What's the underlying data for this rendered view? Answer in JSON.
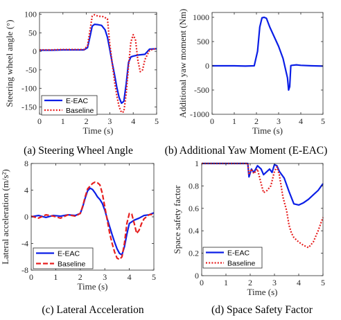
{
  "chart_data": [
    {
      "id": "a",
      "type": "line",
      "caption": "(a) Steering Wheel Angle",
      "xlabel": "Time (s)",
      "ylabel": "Steering wheel angle (°)",
      "xlim": [
        0,
        5
      ],
      "ylim": [
        -170,
        105
      ],
      "xticks": [
        0,
        1,
        2,
        3,
        4,
        5
      ],
      "yticks": [
        -150,
        -100,
        -50,
        0,
        50,
        100
      ],
      "grid": false,
      "legend": "bottom-left",
      "series": [
        {
          "name": "E-EAC",
          "color": "#0a1ee6",
          "style": "solid",
          "x": [
            0,
            0.5,
            1.0,
            1.5,
            1.9,
            2.05,
            2.15,
            2.25,
            2.35,
            2.5,
            2.65,
            2.8,
            2.9,
            3.0,
            3.1,
            3.2,
            3.3,
            3.4,
            3.5,
            3.6,
            3.7,
            3.8,
            3.9,
            4.0,
            4.2,
            4.5,
            4.7,
            5.0
          ],
          "y": [
            3,
            3,
            4,
            4,
            4,
            10,
            38,
            68,
            73,
            72,
            70,
            58,
            38,
            5,
            -30,
            -62,
            -97,
            -125,
            -140,
            -135,
            -88,
            -30,
            -15,
            -13,
            -10,
            -8,
            6,
            7
          ]
        },
        {
          "name": "Baseline",
          "color": "#e61e1e",
          "style": "dotted",
          "x": [
            0,
            0.5,
            1.0,
            1.5,
            1.9,
            2.05,
            2.15,
            2.25,
            2.35,
            2.5,
            2.7,
            2.9,
            3.0,
            3.1,
            3.2,
            3.3,
            3.4,
            3.5,
            3.6,
            3.7,
            3.8,
            3.9,
            4.0,
            4.1,
            4.2,
            4.3,
            4.4,
            4.5,
            4.7,
            5.0
          ],
          "y": [
            4,
            4,
            5,
            5,
            5,
            15,
            55,
            95,
            99,
            95,
            94,
            88,
            20,
            -30,
            -80,
            -120,
            -150,
            -165,
            -163,
            -115,
            -40,
            25,
            45,
            30,
            -25,
            -55,
            -50,
            -22,
            3,
            8
          ]
        }
      ]
    },
    {
      "id": "b",
      "type": "line",
      "caption": "(b) Additional Yaw Moment (E-EAC)",
      "xlabel": "Time (s)",
      "ylabel": "Additional yaw moment (Nm)",
      "xlim": [
        0,
        5
      ],
      "ylim": [
        -1000,
        1100
      ],
      "xticks": [
        0,
        1,
        2,
        3,
        4,
        5
      ],
      "yticks": [
        -1000,
        -500,
        0,
        500,
        1000
      ],
      "grid": false,
      "series": [
        {
          "name": "",
          "color": "#0a1ee6",
          "style": "solid",
          "x": [
            0,
            0.5,
            1.0,
            1.5,
            1.9,
            2.05,
            2.15,
            2.25,
            2.35,
            2.45,
            2.6,
            2.8,
            3.0,
            3.2,
            3.3,
            3.4,
            3.45,
            3.5,
            3.55,
            3.6,
            3.8,
            4.0,
            4.5,
            5.0
          ],
          "y": [
            0,
            0,
            0,
            -5,
            0,
            300,
            800,
            990,
            1000,
            980,
            800,
            600,
            400,
            150,
            -50,
            -250,
            -500,
            -430,
            5,
            10,
            20,
            10,
            0,
            -5
          ]
        }
      ]
    },
    {
      "id": "c",
      "type": "line",
      "caption": "(c) Lateral Acceleration",
      "xlabel": "Time (s)",
      "ylabel": "Lateral acceleration (m/s²)",
      "xlim": [
        0,
        5
      ],
      "ylim": [
        -8,
        8
      ],
      "xticks": [
        0,
        1,
        2,
        3,
        4,
        5
      ],
      "yticks": [
        -8,
        -4,
        0,
        4,
        8
      ],
      "grid": false,
      "legend": "bottom-left",
      "series": [
        {
          "name": "E-EAC",
          "color": "#0a1ee6",
          "style": "solid",
          "x": [
            0,
            0.3,
            0.6,
            0.9,
            1.2,
            1.5,
            1.8,
            2.0,
            2.1,
            2.2,
            2.3,
            2.4,
            2.5,
            2.6,
            2.7,
            2.8,
            2.9,
            3.0,
            3.1,
            3.2,
            3.3,
            3.4,
            3.5,
            3.6,
            3.7,
            3.8,
            3.9,
            4.0,
            4.2,
            4.4,
            4.6,
            4.8,
            5.0
          ],
          "y": [
            0,
            0.2,
            -0.1,
            0.2,
            0.1,
            0.3,
            0.2,
            0.5,
            1.5,
            2.8,
            3.9,
            4.3,
            4.1,
            3.6,
            3.0,
            2.6,
            2.0,
            1.0,
            -0.3,
            -1.5,
            -2.7,
            -3.8,
            -4.8,
            -5.5,
            -5.7,
            -4.5,
            -2.6,
            -1.0,
            -0.5,
            -0.2,
            0.2,
            0.3,
            0.6
          ]
        },
        {
          "name": "Baseline",
          "color": "#e61e1e",
          "style": "dashed",
          "x": [
            0,
            0.3,
            0.6,
            0.9,
            1.2,
            1.5,
            1.8,
            2.0,
            2.1,
            2.2,
            2.3,
            2.4,
            2.5,
            2.6,
            2.7,
            2.8,
            2.9,
            3.0,
            3.1,
            3.2,
            3.3,
            3.4,
            3.5,
            3.6,
            3.7,
            3.8,
            3.9,
            4.0,
            4.1,
            4.2,
            4.3,
            4.4,
            4.5,
            4.6,
            4.8,
            5.0
          ],
          "y": [
            0.1,
            -0.2,
            0.3,
            0.1,
            -0.2,
            0.3,
            0.1,
            0.5,
            1.6,
            3.0,
            4.2,
            4.6,
            5.0,
            5.2,
            5.1,
            4.8,
            3.5,
            1.5,
            -0.5,
            -2.5,
            -4.0,
            -5.3,
            -6.2,
            -6.4,
            -6.0,
            -4.0,
            -1.0,
            0.5,
            0.4,
            -1.0,
            -2.5,
            -2.0,
            -1.0,
            -0.3,
            0.3,
            0.4
          ]
        }
      ]
    },
    {
      "id": "d",
      "type": "line",
      "caption": "(d) Space Safety Factor",
      "xlabel": "Time (s)",
      "ylabel": "Space safety factor",
      "xlim": [
        0,
        5
      ],
      "ylim": [
        0,
        1
      ],
      "xticks": [
        0,
        1,
        2,
        3,
        4,
        5
      ],
      "yticks": [
        0,
        0.2,
        0.4,
        0.6,
        0.8,
        1
      ],
      "grid": false,
      "legend": "bottom-left",
      "series": [
        {
          "name": "E-EAC",
          "color": "#0a1ee6",
          "style": "solid",
          "x": [
            0,
            1.0,
            1.9,
            1.95,
            2.05,
            2.15,
            2.3,
            2.45,
            2.55,
            2.65,
            2.8,
            2.9,
            3.0,
            3.1,
            3.2,
            3.4,
            3.6,
            3.8,
            4.0,
            4.2,
            4.4,
            4.6,
            4.8,
            5.0
          ],
          "y": [
            1,
            1,
            1,
            0.88,
            0.95,
            0.92,
            0.98,
            0.95,
            0.9,
            0.92,
            0.95,
            0.92,
            0.99,
            0.98,
            0.93,
            0.87,
            0.75,
            0.64,
            0.63,
            0.65,
            0.68,
            0.72,
            0.76,
            0.82
          ]
        },
        {
          "name": "Baseline",
          "color": "#e61e1e",
          "style": "dotted",
          "x": [
            0,
            1.0,
            1.9,
            1.95,
            2.05,
            2.15,
            2.3,
            2.45,
            2.55,
            2.7,
            2.85,
            3.0,
            3.1,
            3.2,
            3.35,
            3.5,
            3.6,
            3.7,
            3.8,
            4.0,
            4.2,
            4.4,
            4.6,
            4.8,
            5.0
          ],
          "y": [
            1,
            1,
            1,
            0.9,
            0.95,
            0.91,
            0.95,
            0.82,
            0.74,
            0.76,
            0.8,
            0.93,
            0.97,
            0.9,
            0.7,
            0.58,
            0.45,
            0.38,
            0.34,
            0.3,
            0.27,
            0.25,
            0.3,
            0.4,
            0.52
          ]
        }
      ]
    }
  ]
}
